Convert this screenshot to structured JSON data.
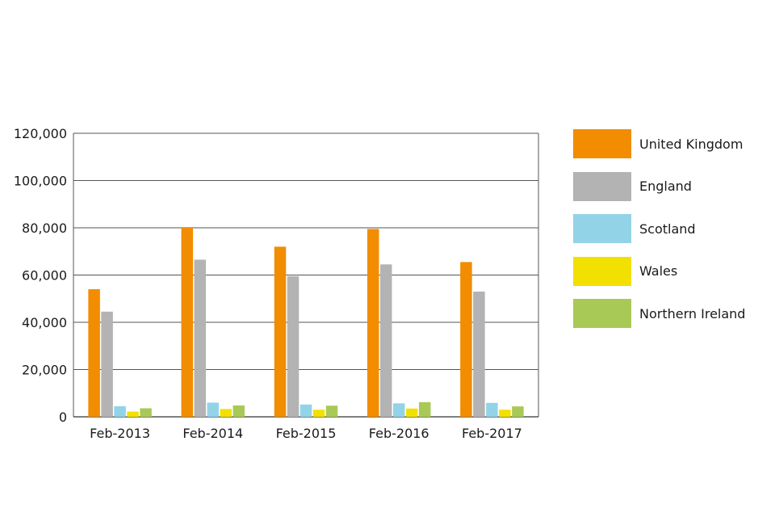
{
  "chart_data": {
    "type": "bar",
    "title": "",
    "xlabel": "",
    "ylabel": "",
    "categories": [
      "Feb-2013",
      "Feb-2014",
      "Feb-2015",
      "Feb-2016",
      "Feb-2017"
    ],
    "ylim": [
      0,
      120000
    ],
    "yticks": [
      0,
      20000,
      40000,
      60000,
      80000,
      100000,
      120000
    ],
    "ytick_labels": [
      "0",
      "20,000",
      "40,000",
      "60,000",
      "80,000",
      "100,000",
      "120,000"
    ],
    "grid": true,
    "legend_position": "right",
    "series": [
      {
        "name": "United Kingdom",
        "color": "#f28c00",
        "values": [
          54000,
          80000,
          72000,
          79500,
          65500
        ]
      },
      {
        "name": "England",
        "color": "#b3b3b3",
        "values": [
          44500,
          66500,
          59500,
          64500,
          53000
        ]
      },
      {
        "name": "Scotland",
        "color": "#93d3e8",
        "values": [
          4500,
          6000,
          5200,
          5700,
          5900
        ]
      },
      {
        "name": "Wales",
        "color": "#f2e000",
        "values": [
          2200,
          3300,
          3000,
          3500,
          3000
        ]
      },
      {
        "name": "Northern Ireland",
        "color": "#a9c956",
        "values": [
          3600,
          4800,
          4700,
          6200,
          4400
        ]
      }
    ]
  }
}
